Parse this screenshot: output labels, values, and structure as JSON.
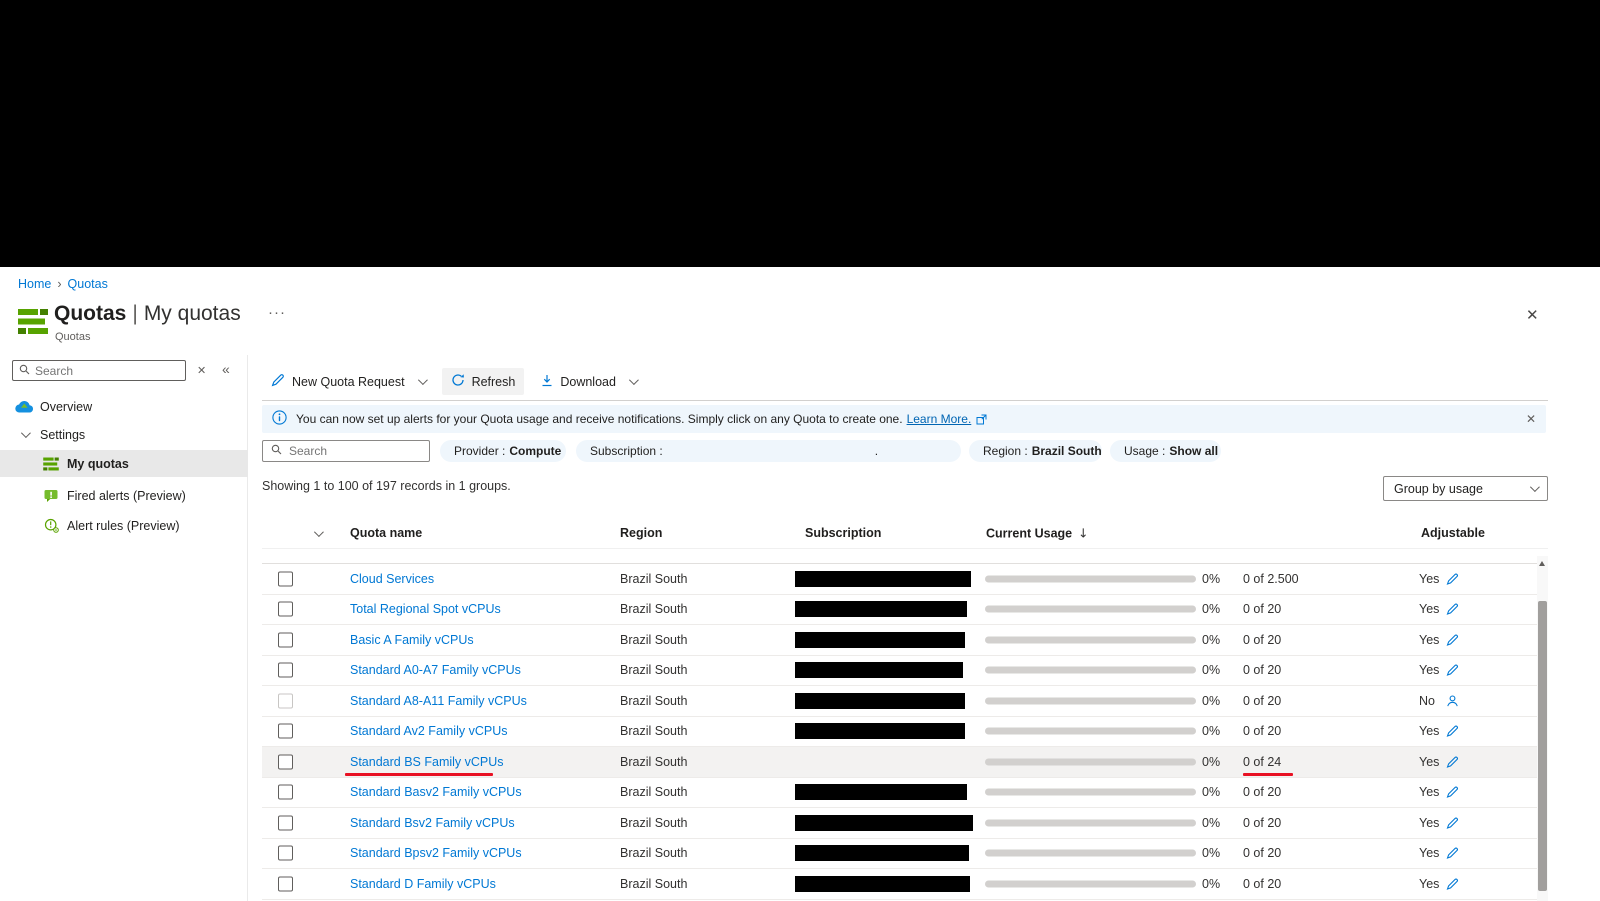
{
  "colors": {
    "accent": "#0078d4",
    "green": "#57a300",
    "banner_bg": "#eff6fc",
    "pill_bg": "#eff6fc",
    "row_highlight": "#f3f2f1",
    "underline_red": "#e81123",
    "progress_track": "#d2d0ce"
  },
  "breadcrumb": {
    "home": "Home",
    "current": "Quotas",
    "separator": "›"
  },
  "blade": {
    "title_primary": "Quotas",
    "title_separator": "|",
    "title_secondary": "My quotas",
    "subtitle": "Quotas",
    "ellipsis": "···",
    "close": "✕"
  },
  "sidebar": {
    "search": {
      "placeholder": "Search",
      "clear": "✕",
      "collapse": "«"
    },
    "items": {
      "overview": "Overview",
      "settings": "Settings",
      "my_quotas": "My quotas",
      "fired_alerts": "Fired alerts (Preview)",
      "alert_rules": "Alert rules (Preview)"
    }
  },
  "toolbar": {
    "new_quota_request": "New Quota Request",
    "refresh": "Refresh",
    "download": "Download"
  },
  "banner": {
    "message": "You can now set up alerts for your Quota usage and receive notifications. Simply click on any Quota to create one.",
    "link": "Learn More.",
    "close": "✕"
  },
  "filters": {
    "search_placeholder": "Search",
    "provider": {
      "label": "Provider :",
      "value": "Compute"
    },
    "subscription": {
      "label": "Subscription :",
      "suffix": "."
    },
    "region": {
      "label": "Region :",
      "value": "Brazil South"
    },
    "usage": {
      "label": "Usage :",
      "value": "Show all"
    }
  },
  "summary": "Showing 1 to 100 of 197 records in 1 groups.",
  "group_by": {
    "value": "Group by usage"
  },
  "table": {
    "headers": {
      "quota_name": "Quota name",
      "region": "Region",
      "subscription": "Subscription",
      "current_usage": "Current Usage",
      "sort": "↓",
      "adjustable": "Adjustable"
    },
    "rows": [
      {
        "name": "Cloud Services",
        "region": "Brazil South",
        "pct": "0%",
        "usage": "0 of 2.500",
        "adjustable": "Yes",
        "adjust_icon": "pencil",
        "redacted_width": 176,
        "highlighted": false,
        "checkbox_disabled": false,
        "underline": false
      },
      {
        "name": "Total Regional Spot vCPUs",
        "region": "Brazil South",
        "pct": "0%",
        "usage": "0 of 20",
        "adjustable": "Yes",
        "adjust_icon": "pencil",
        "redacted_width": 172,
        "highlighted": false,
        "checkbox_disabled": false,
        "underline": false
      },
      {
        "name": "Basic A Family vCPUs",
        "region": "Brazil South",
        "pct": "0%",
        "usage": "0 of 20",
        "adjustable": "Yes",
        "adjust_icon": "pencil",
        "redacted_width": 170,
        "highlighted": false,
        "checkbox_disabled": false,
        "underline": false
      },
      {
        "name": "Standard A0-A7 Family vCPUs",
        "region": "Brazil South",
        "pct": "0%",
        "usage": "0 of 20",
        "adjustable": "Yes",
        "adjust_icon": "pencil",
        "redacted_width": 168,
        "highlighted": false,
        "checkbox_disabled": false,
        "underline": false
      },
      {
        "name": "Standard A8-A11 Family vCPUs",
        "region": "Brazil South",
        "pct": "0%",
        "usage": "0 of 20",
        "adjustable": "No",
        "adjust_icon": "person",
        "redacted_width": 170,
        "highlighted": false,
        "checkbox_disabled": true,
        "underline": false
      },
      {
        "name": "Standard Av2 Family vCPUs",
        "region": "Brazil South",
        "pct": "0%",
        "usage": "0 of 20",
        "adjustable": "Yes",
        "adjust_icon": "pencil",
        "redacted_width": 170,
        "highlighted": false,
        "checkbox_disabled": false,
        "underline": false
      },
      {
        "name": "Standard BS Family vCPUs",
        "region": "Brazil South",
        "pct": "0%",
        "usage": "0 of 24",
        "adjustable": "Yes",
        "adjust_icon": "pencil",
        "redacted_width": 0,
        "highlighted": true,
        "checkbox_disabled": false,
        "underline": true
      },
      {
        "name": "Standard Basv2 Family vCPUs",
        "region": "Brazil South",
        "pct": "0%",
        "usage": "0 of 20",
        "adjustable": "Yes",
        "adjust_icon": "pencil",
        "redacted_width": 172,
        "highlighted": false,
        "checkbox_disabled": false,
        "underline": false
      },
      {
        "name": "Standard Bsv2 Family vCPUs",
        "region": "Brazil South",
        "pct": "0%",
        "usage": "0 of 20",
        "adjustable": "Yes",
        "adjust_icon": "pencil",
        "redacted_width": 178,
        "highlighted": false,
        "checkbox_disabled": false,
        "underline": false
      },
      {
        "name": "Standard Bpsv2 Family vCPUs",
        "region": "Brazil South",
        "pct": "0%",
        "usage": "0 of 20",
        "adjustable": "Yes",
        "adjust_icon": "pencil",
        "redacted_width": 174,
        "highlighted": false,
        "checkbox_disabled": false,
        "underline": false
      },
      {
        "name": "Standard D Family vCPUs",
        "region": "Brazil South",
        "pct": "0%",
        "usage": "0 of 20",
        "adjustable": "Yes",
        "adjust_icon": "pencil",
        "redacted_width": 175,
        "highlighted": false,
        "checkbox_disabled": false,
        "underline": false
      }
    ]
  }
}
